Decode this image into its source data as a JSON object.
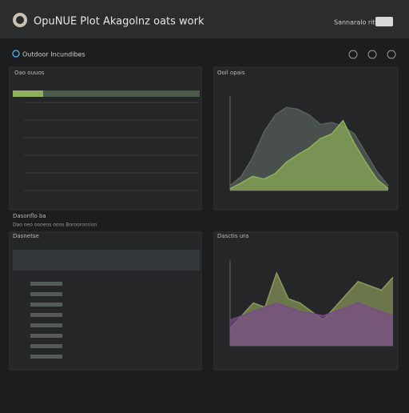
{
  "header": {
    "title": "OpuNUE Plot Akagolnz oats work",
    "user": "Sannaralo rit"
  },
  "section": {
    "title": "Outdoor Incundibes"
  },
  "panels": [
    {
      "title": "Oao ouuos"
    },
    {
      "title": "Dasnetse"
    }
  ],
  "summary": {
    "title": "Dasonflo ba",
    "subtitle": "Dao oeo oooeos ooos Borooronrion"
  },
  "chart_data": [
    {
      "type": "area",
      "title": "Ooil opais",
      "x": [
        0,
        1,
        2,
        3,
        4,
        5,
        6,
        7,
        8,
        9,
        10,
        11,
        12,
        13,
        14
      ],
      "xlim": [
        0,
        14
      ],
      "ylim": [
        0,
        100
      ],
      "series": [
        {
          "color": "#59615d",
          "values": [
            5,
            15,
            35,
            62,
            80,
            88,
            86,
            80,
            70,
            72,
            68,
            60,
            40,
            20,
            5
          ]
        },
        {
          "color": "#8fb05a",
          "values": [
            2,
            8,
            15,
            12,
            18,
            30,
            38,
            45,
            55,
            60,
            74,
            50,
            30,
            12,
            2
          ]
        }
      ]
    },
    {
      "type": "area",
      "title": "Dasctis ura",
      "x": [
        0,
        1,
        2,
        3,
        4,
        5,
        6,
        7,
        8,
        9,
        10,
        11,
        12,
        13,
        14
      ],
      "xlim": [
        0,
        14
      ],
      "ylim": [
        0,
        100
      ],
      "series": [
        {
          "color": "#8a9a5a",
          "values": [
            20,
            35,
            50,
            45,
            85,
            55,
            50,
            40,
            30,
            45,
            60,
            75,
            70,
            65,
            80
          ]
        },
        {
          "color": "#7a4a8a",
          "values": [
            30,
            35,
            40,
            45,
            50,
            45,
            40,
            38,
            35,
            40,
            45,
            50,
            45,
            40,
            35
          ]
        }
      ]
    }
  ]
}
